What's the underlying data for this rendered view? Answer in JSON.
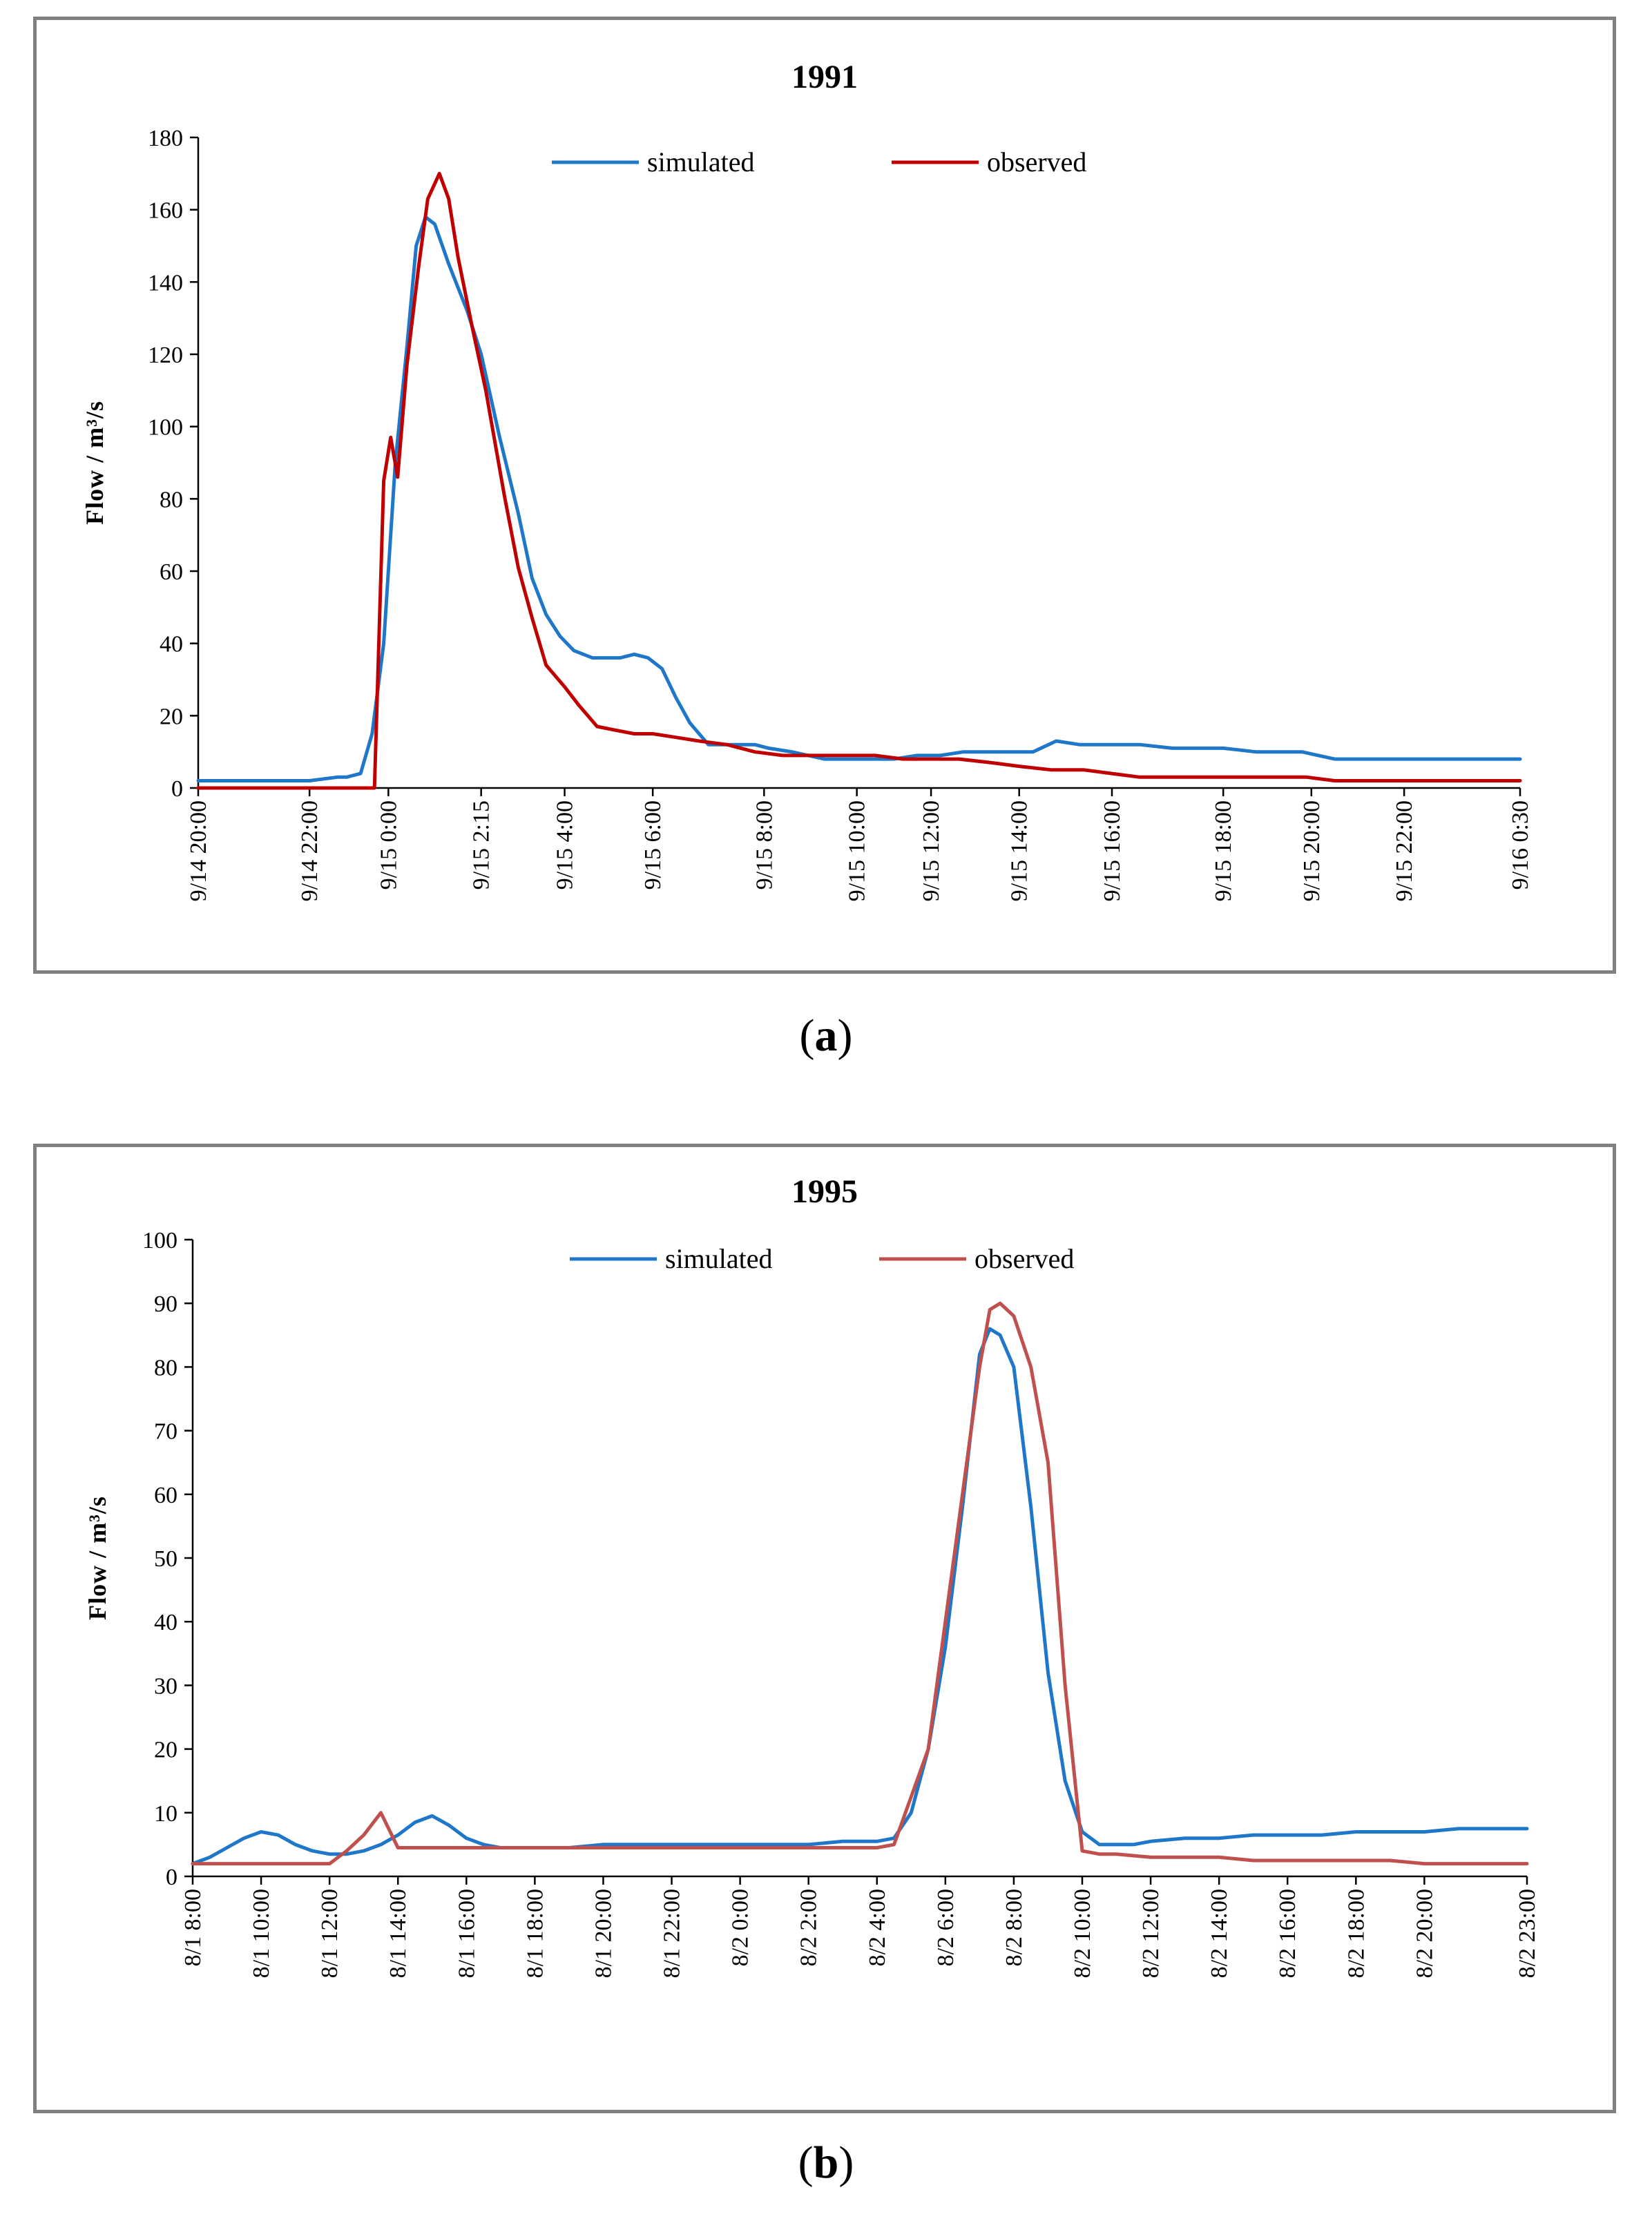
{
  "captions": {
    "a": "a",
    "b": "b"
  },
  "chart_data": [
    {
      "type": "line",
      "title": "1991",
      "xlabel": "",
      "ylabel": "Flow / m³/s",
      "ylim": [
        0,
        180
      ],
      "yticks": [
        0,
        20,
        40,
        60,
        80,
        100,
        120,
        140,
        160,
        180
      ],
      "xlim": [
        0,
        28.5
      ],
      "xtick_labels": [
        "9/14 20:00",
        "9/14 22:00",
        "9/15 0:00",
        "9/15 2:15",
        "9/15 4:00",
        "9/15 6:00",
        "9/15 8:00",
        "9/15 10:00",
        "9/15 12:00",
        "9/15 14:00",
        "9/15 16:00",
        "9/15 18:00",
        "9/15 20:00",
        "9/15 22:00",
        "9/16 0:30"
      ],
      "xtick_values": [
        0,
        2.4,
        4.1,
        6.1,
        7.9,
        9.8,
        12.2,
        14.2,
        15.8,
        17.7,
        19.7,
        22.1,
        24.0,
        26.0,
        28.5
      ],
      "legend": {
        "placement": "top-center"
      },
      "series": [
        {
          "name": "simulated",
          "color": "#1f77c9",
          "x": [
            0,
            1.2,
            2.2,
            2.4,
            3.0,
            3.2,
            3.5,
            3.75,
            4.0,
            4.25,
            4.5,
            4.7,
            4.9,
            5.1,
            5.4,
            5.8,
            6.1,
            6.5,
            6.9,
            7.2,
            7.5,
            7.8,
            8.1,
            8.5,
            8.8,
            9.1,
            9.4,
            9.7,
            10.0,
            10.3,
            10.6,
            11.0,
            11.5,
            12.0,
            12.3,
            12.8,
            13.5,
            14.2,
            15.0,
            15.5,
            16.0,
            16.5,
            17.2,
            17.7,
            18.0,
            18.5,
            19.0,
            19.6,
            20.3,
            21.0,
            21.6,
            22.1,
            22.8,
            23.5,
            23.8,
            24.5,
            25.5,
            26.5,
            27.5,
            28.5
          ],
          "y": [
            2,
            2,
            2,
            2,
            3,
            3,
            4,
            15,
            40,
            90,
            122,
            150,
            158,
            156,
            145,
            132,
            120,
            97,
            76,
            58,
            48,
            42,
            38,
            36,
            36,
            36,
            37,
            36,
            33,
            25,
            18,
            12,
            12,
            12,
            11,
            10,
            8,
            8,
            8,
            9,
            9,
            10,
            10,
            10,
            10,
            13,
            12,
            12,
            12,
            11,
            11,
            11,
            10,
            10,
            10,
            8,
            8,
            8,
            8,
            8
          ]
        },
        {
          "name": "observed",
          "color": "#c00000",
          "x": [
            0,
            2.4,
            3.5,
            3.8,
            4.0,
            4.15,
            4.3,
            4.5,
            4.75,
            4.95,
            5.2,
            5.4,
            5.6,
            5.9,
            6.2,
            6.6,
            6.9,
            7.2,
            7.5,
            7.9,
            8.2,
            8.6,
            9.0,
            9.4,
            9.8,
            10.3,
            10.8,
            11.4,
            12.0,
            12.6,
            13.2,
            14.0,
            14.6,
            15.2,
            15.8,
            16.4,
            17.1,
            17.7,
            18.4,
            19.1,
            19.7,
            20.3,
            21.0,
            21.6,
            22.1,
            23.0,
            23.9,
            24.5,
            25.5,
            26.5,
            27.5,
            28.5
          ],
          "y": [
            0,
            0,
            0,
            0,
            85,
            97,
            86,
            117,
            144,
            163,
            170,
            163,
            147,
            128,
            110,
            81,
            61,
            47,
            34,
            28,
            23,
            17,
            16,
            15,
            15,
            14,
            13,
            12,
            10,
            9,
            9,
            9,
            9,
            8,
            8,
            8,
            7,
            6,
            5,
            5,
            4,
            3,
            3,
            3,
            3,
            3,
            3,
            2,
            2,
            2,
            2,
            2
          ]
        }
      ]
    },
    {
      "type": "line",
      "title": "1995",
      "xlabel": "",
      "ylabel": "Flow / m³/s",
      "ylim": [
        0,
        100
      ],
      "yticks": [
        0,
        10,
        20,
        30,
        40,
        50,
        60,
        70,
        80,
        90,
        100
      ],
      "xlim": [
        0,
        39
      ],
      "xtick_labels": [
        "8/1 8:00",
        "8/1 10:00",
        "8/1 12:00",
        "8/1 14:00",
        "8/1 16:00",
        "8/1 18:00",
        "8/1 20:00",
        "8/1 22:00",
        "8/2 0:00",
        "8/2 2:00",
        "8/2 4:00",
        "8/2 6:00",
        "8/2 8:00",
        "8/2 10:00",
        "8/2 12:00",
        "8/2 14:00",
        "8/2 16:00",
        "8/2 18:00",
        "8/2 20:00",
        "8/2 23:00"
      ],
      "xtick_values": [
        0,
        2,
        4,
        6,
        8,
        10,
        12,
        14,
        16,
        18,
        20,
        22,
        24,
        26,
        28,
        30,
        32,
        34,
        36,
        39
      ],
      "legend": {
        "placement": "top-center"
      },
      "series": [
        {
          "name": "simulated",
          "color": "#1f77c9",
          "x": [
            0,
            0.5,
            1.0,
            1.5,
            2.0,
            2.5,
            3.0,
            3.5,
            4.0,
            4.5,
            5.0,
            5.5,
            6.0,
            6.5,
            7.0,
            7.5,
            8.0,
            8.5,
            9.0,
            10,
            11,
            12,
            13,
            14,
            15,
            16,
            17,
            18,
            19,
            20,
            20.5,
            21.0,
            21.5,
            22.0,
            22.5,
            23.0,
            23.3,
            23.6,
            24.0,
            24.5,
            25.0,
            25.5,
            26.0,
            26.5,
            27.0,
            27.5,
            28.0,
            29,
            30,
            31,
            32,
            33,
            34,
            35,
            36,
            37,
            38,
            39
          ],
          "y": [
            2,
            3,
            4.5,
            6,
            7,
            6.5,
            5,
            4,
            3.5,
            3.5,
            4,
            5,
            6.5,
            8.5,
            9.5,
            8,
            6,
            5,
            4.5,
            4.5,
            4.5,
            5,
            5,
            5,
            5,
            5,
            5,
            5,
            5.5,
            5.5,
            6,
            10,
            20,
            36,
            58,
            82,
            86,
            85,
            80,
            58,
            32,
            15,
            7,
            5,
            5,
            5,
            5.5,
            6,
            6,
            6.5,
            6.5,
            6.5,
            7,
            7,
            7,
            7.5,
            7.5,
            7.5
          ]
        },
        {
          "name": "observed",
          "color": "#c0504d",
          "x": [
            0,
            1,
            2,
            3,
            4,
            4.5,
            5.0,
            5.5,
            6.0,
            7.0,
            8.0,
            9.0,
            10,
            11,
            12,
            13,
            14,
            15,
            16,
            17,
            18,
            19,
            20,
            20.5,
            21.5,
            22.0,
            22.5,
            23.0,
            23.3,
            23.6,
            24.0,
            24.5,
            25.0,
            25.5,
            26.0,
            26.5,
            27.0,
            28.0,
            29.0,
            30.0,
            31.0,
            32.0,
            33.0,
            34.0,
            35.0,
            36.0,
            37.0,
            38.0,
            39.0
          ],
          "y": [
            2,
            2,
            2,
            2,
            2,
            4,
            6.5,
            10,
            4.5,
            4.5,
            4.5,
            4.5,
            4.5,
            4.5,
            4.5,
            4.5,
            4.5,
            4.5,
            4.5,
            4.5,
            4.5,
            4.5,
            4.5,
            5,
            20,
            40,
            60,
            80,
            89,
            90,
            88,
            80,
            65,
            30,
            4,
            3.5,
            3.5,
            3,
            3,
            3,
            2.5,
            2.5,
            2.5,
            2.5,
            2.5,
            2,
            2,
            2,
            2
          ]
        }
      ]
    }
  ]
}
